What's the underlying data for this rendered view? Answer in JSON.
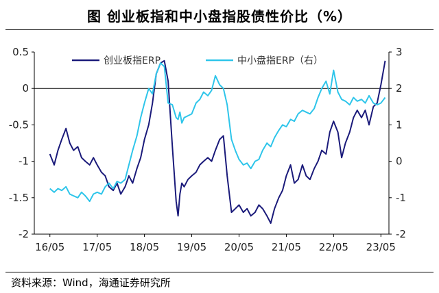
{
  "title": "图  创业板指和中小盘指股债性价比（%）",
  "source": "资料来源：Wind，海通证券研究所",
  "colors": {
    "series1": "#1a1a7a",
    "series2": "#2ec5ea",
    "axis": "#000000"
  },
  "chart_data": {
    "type": "line",
    "title": "图  创业板指和中小盘指股债性价比（%）",
    "legend_position": "top",
    "grid": false,
    "x_ticks": [
      "16/05",
      "17/05",
      "18/05",
      "19/05",
      "20/05",
      "21/05",
      "22/05",
      "23/05"
    ],
    "x_range": [
      "2016-04",
      "2023-06"
    ],
    "y_left": {
      "min": -2,
      "max": 0.5,
      "ticks": [
        0.5,
        0,
        -0.5,
        -1,
        -1.5,
        -2
      ],
      "tick_labels": [
        "0.5",
        "0",
        "-0.5",
        "-1",
        "-1.5",
        "-2"
      ]
    },
    "y_right": {
      "min": -2,
      "max": 3,
      "ticks": [
        3,
        2,
        1,
        0,
        -1,
        -2
      ],
      "tick_labels": [
        "3",
        "2",
        "1",
        "0",
        "-1",
        "-2"
      ]
    },
    "series": [
      {
        "name": "创业板指ERP",
        "axis": "left",
        "x": [
          2016.33,
          2016.42,
          2016.5,
          2016.58,
          2016.67,
          2016.75,
          2016.83,
          2016.92,
          2017.0,
          2017.08,
          2017.17,
          2017.25,
          2017.33,
          2017.42,
          2017.5,
          2017.58,
          2017.67,
          2017.75,
          2017.83,
          2017.92,
          2018.0,
          2018.08,
          2018.17,
          2018.25,
          2018.33,
          2018.42,
          2018.5,
          2018.58,
          2018.67,
          2018.75,
          2018.83,
          2018.92,
          2019.0,
          2019.04,
          2019.08,
          2019.12,
          2019.17,
          2019.25,
          2019.33,
          2019.42,
          2019.5,
          2019.58,
          2019.67,
          2019.75,
          2019.83,
          2019.92,
          2020.0,
          2020.08,
          2020.17,
          2020.25,
          2020.33,
          2020.42,
          2020.5,
          2020.58,
          2020.67,
          2020.75,
          2020.83,
          2020.92,
          2021.0,
          2021.08,
          2021.17,
          2021.25,
          2021.33,
          2021.42,
          2021.5,
          2021.58,
          2021.67,
          2021.75,
          2021.83,
          2021.92,
          2022.0,
          2022.08,
          2022.17,
          2022.25,
          2022.33,
          2022.42,
          2022.5,
          2022.58,
          2022.67,
          2022.75,
          2022.83,
          2022.92,
          2023.0,
          2023.08,
          2023.17,
          2023.25,
          2023.33,
          2023.42
        ],
        "y": [
          -0.9,
          -1.05,
          -0.85,
          -0.7,
          -0.55,
          -0.75,
          -0.85,
          -0.8,
          -0.95,
          -1.0,
          -1.05,
          -0.95,
          -1.05,
          -1.15,
          -1.2,
          -1.35,
          -1.4,
          -1.3,
          -1.45,
          -1.35,
          -1.2,
          -1.3,
          -1.1,
          -0.95,
          -0.7,
          -0.5,
          -0.2,
          0.2,
          0.35,
          0.38,
          0.1,
          -0.8,
          -1.55,
          -1.75,
          -1.45,
          -1.3,
          -1.35,
          -1.25,
          -1.2,
          -1.15,
          -1.05,
          -1.0,
          -0.95,
          -1.0,
          -0.85,
          -0.7,
          -0.65,
          -1.2,
          -1.7,
          -1.65,
          -1.6,
          -1.7,
          -1.65,
          -1.75,
          -1.7,
          -1.6,
          -1.65,
          -1.75,
          -1.85,
          -1.65,
          -1.5,
          -1.4,
          -1.2,
          -1.05,
          -1.3,
          -1.25,
          -1.05,
          -1.2,
          -1.25,
          -1.1,
          -1.0,
          -0.85,
          -0.9,
          -0.6,
          -0.45,
          -0.6,
          -0.95,
          -0.75,
          -0.6,
          -0.4,
          -0.3,
          -0.4,
          -0.3,
          -0.5,
          -0.25,
          -0.2,
          0.05,
          0.38
        ]
      },
      {
        "name": "中小盘指ERP（右）",
        "axis": "right",
        "x": [
          2016.33,
          2016.42,
          2016.5,
          2016.58,
          2016.67,
          2016.75,
          2016.83,
          2016.92,
          2017.0,
          2017.08,
          2017.17,
          2017.25,
          2017.33,
          2017.42,
          2017.5,
          2017.58,
          2017.67,
          2017.75,
          2017.83,
          2017.92,
          2018.0,
          2018.08,
          2018.17,
          2018.25,
          2018.33,
          2018.42,
          2018.5,
          2018.58,
          2018.67,
          2018.75,
          2018.83,
          2018.92,
          2019.0,
          2019.04,
          2019.08,
          2019.12,
          2019.17,
          2019.25,
          2019.33,
          2019.42,
          2019.5,
          2019.58,
          2019.67,
          2019.75,
          2019.83,
          2019.92,
          2020.0,
          2020.08,
          2020.17,
          2020.25,
          2020.33,
          2020.42,
          2020.5,
          2020.58,
          2020.67,
          2020.75,
          2020.83,
          2020.92,
          2021.0,
          2021.08,
          2021.17,
          2021.25,
          2021.33,
          2021.42,
          2021.5,
          2021.58,
          2021.67,
          2021.75,
          2021.83,
          2021.92,
          2022.0,
          2022.08,
          2022.17,
          2022.25,
          2022.33,
          2022.42,
          2022.5,
          2022.58,
          2022.67,
          2022.75,
          2022.83,
          2022.92,
          2023.0,
          2023.08,
          2023.17,
          2023.25,
          2023.33,
          2023.42
        ],
        "y": [
          -0.75,
          -0.85,
          -0.75,
          -0.8,
          -0.7,
          -0.9,
          -0.95,
          -1.0,
          -0.85,
          -0.95,
          -1.1,
          -0.9,
          -0.85,
          -0.9,
          -0.7,
          -0.6,
          -0.75,
          -0.55,
          -0.6,
          -0.5,
          -0.1,
          0.3,
          0.7,
          1.2,
          1.6,
          2.0,
          1.85,
          2.4,
          2.7,
          2.6,
          1.6,
          1.55,
          1.2,
          1.15,
          1.35,
          1.05,
          1.2,
          1.25,
          1.3,
          1.6,
          1.7,
          1.9,
          1.8,
          1.95,
          2.35,
          2.1,
          2.0,
          1.55,
          0.6,
          0.3,
          0.05,
          -0.1,
          -0.05,
          -0.2,
          0.0,
          0.05,
          0.3,
          0.5,
          0.4,
          0.65,
          0.85,
          1.0,
          0.95,
          1.15,
          1.1,
          1.3,
          1.4,
          1.35,
          1.3,
          1.45,
          1.75,
          2.0,
          2.2,
          1.85,
          2.5,
          1.9,
          1.7,
          1.65,
          1.55,
          1.75,
          1.65,
          1.7,
          1.6,
          1.8,
          1.6,
          1.55,
          1.6,
          1.75
        ]
      }
    ]
  }
}
